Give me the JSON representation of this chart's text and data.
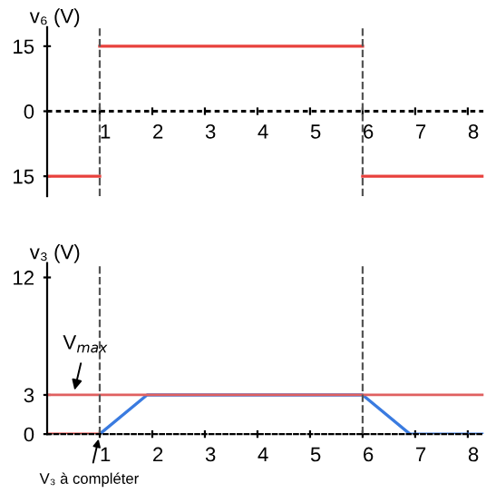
{
  "chart_data": [
    {
      "type": "line",
      "ylabel": "v₆ (V)",
      "series": [
        {
          "color": "#e8403c",
          "x": [
            0,
            1
          ],
          "values": [
            -15,
            -15
          ]
        },
        {
          "color": "#e8403c",
          "x": [
            1,
            6
          ],
          "values": [
            15,
            15
          ]
        },
        {
          "color": "#e8403c",
          "x": [
            6,
            8.3
          ],
          "values": [
            -15,
            -15
          ]
        }
      ],
      "xlim": [
        0,
        8.3
      ],
      "xticks": [
        1,
        2,
        3,
        4,
        5,
        6,
        7,
        8
      ],
      "ylim": [
        -19.6,
        19.4
      ],
      "yticks": [
        {
          "value": -15,
          "label": "15"
        },
        0,
        15
      ],
      "ref_lines": [
        {
          "axis": "y",
          "value": 0,
          "color": "#000000",
          "line_style": "dashed"
        },
        {
          "axis": "x",
          "value": 1,
          "color": "#555555",
          "line_style": "dashed"
        },
        {
          "axis": "x",
          "value": 6,
          "color": "#555555",
          "line_style": "dashed"
        }
      ]
    },
    {
      "type": "line",
      "ylabel": "v₃ (V)",
      "series": [
        {
          "color": "#e8403c",
          "x": [
            0,
            1
          ],
          "values": [
            0,
            0
          ]
        },
        {
          "color": "#3a7be0",
          "x": [
            1,
            1.9,
            6,
            6.9,
            8.3
          ],
          "values": [
            0,
            3,
            3,
            0,
            0
          ]
        }
      ],
      "xlim": [
        0,
        8.3
      ],
      "xticks": [
        1,
        2,
        3,
        4,
        5,
        6,
        7,
        8
      ],
      "ylim": [
        0,
        13.1
      ],
      "yticks": [
        0,
        3,
        12
      ],
      "ref_lines": [
        {
          "axis": "y",
          "value": 3,
          "label": "V$_{max}$",
          "color": "#e06060",
          "line_style": "solid"
        },
        {
          "axis": "x",
          "value": 1,
          "color": "#555555",
          "line_style": "dashed"
        },
        {
          "axis": "x",
          "value": 6,
          "color": "#555555",
          "line_style": "dashed"
        }
      ],
      "annotations": [
        {
          "text": "V₃ à compléter",
          "x": 1,
          "y": 0
        }
      ]
    }
  ]
}
